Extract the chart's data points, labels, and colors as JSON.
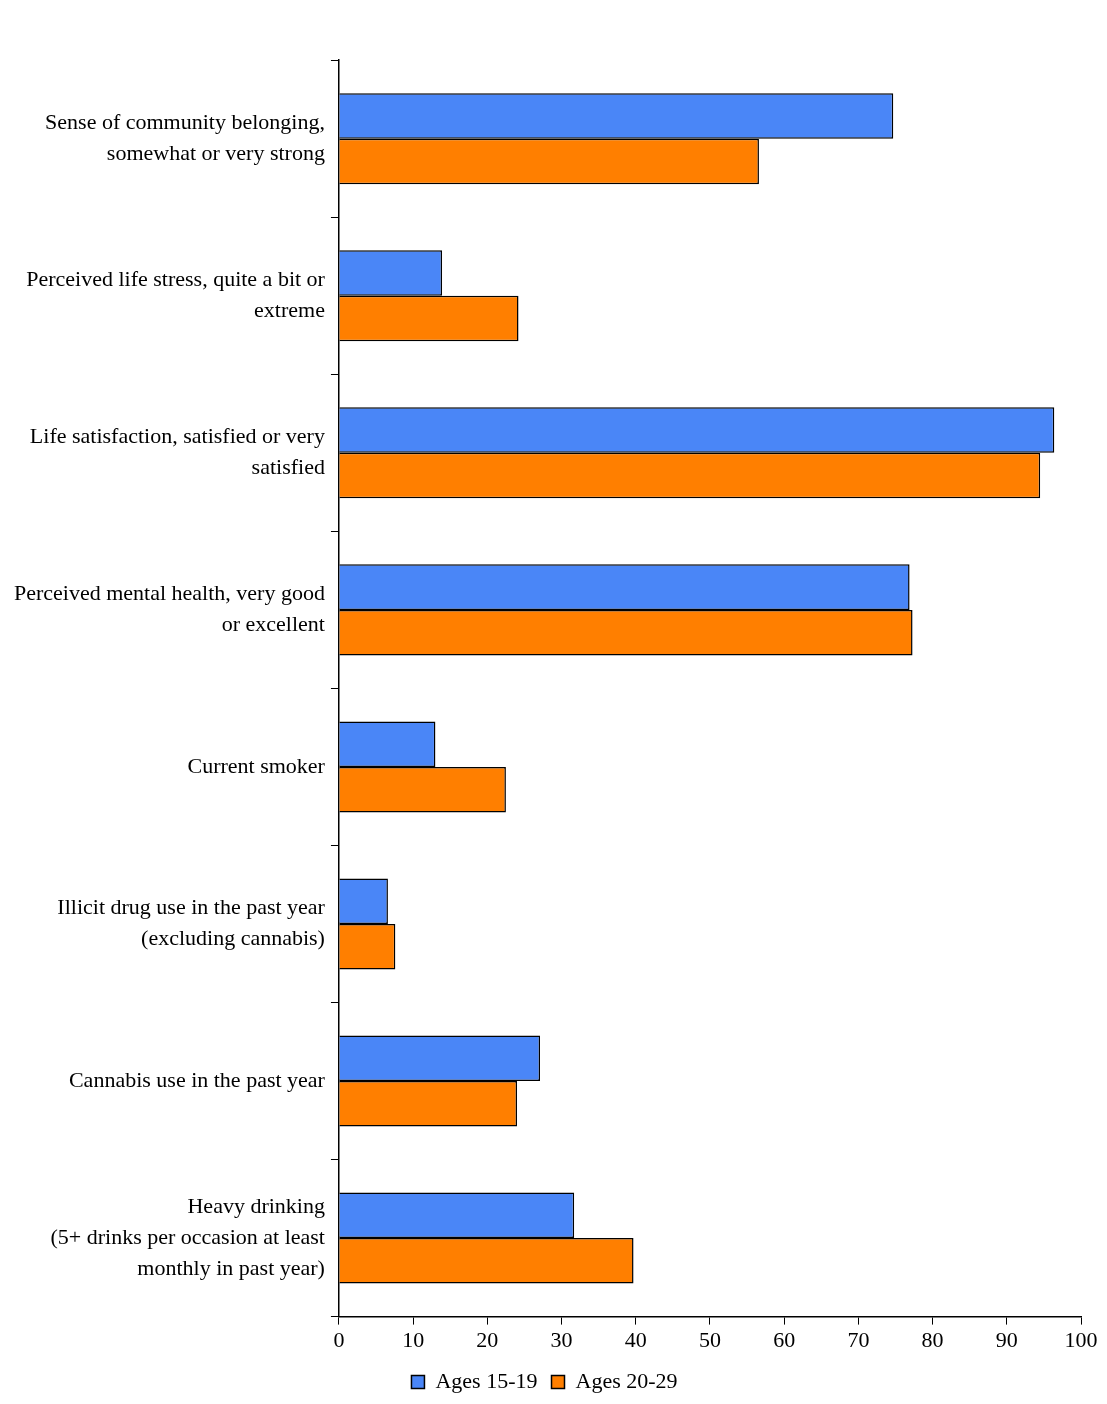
{
  "chart_data": {
    "type": "bar",
    "orientation": "horizontal",
    "categories": [
      "Sense of community belonging, somewhat or very strong",
      "Perceived life stress, quite a bit or extreme",
      "Life satisfaction, satisfied or very satisfied",
      "Perceived mental health, very good or excellent",
      "Current smoker",
      "Illicit drug use in the past year (excluding cannabis)",
      "Cannabis use in the past year",
      "Heavy drinking (5+ drinks per occasion at least monthly in past year)"
    ],
    "series": [
      {
        "name": "Ages 15-19",
        "color": "#4a86f7",
        "values": [
          74.7,
          13.9,
          96.4,
          76.9,
          13.0,
          6.6,
          27.1,
          31.7
        ]
      },
      {
        "name": "Ages 20-29",
        "color": "#ff7f00",
        "values": [
          56.6,
          24.2,
          94.5,
          77.3,
          22.5,
          7.6,
          24.0,
          39.7
        ]
      }
    ],
    "xlim": [
      0,
      100
    ],
    "xticks": [
      0,
      10,
      20,
      30,
      40,
      50,
      60,
      70,
      80,
      90,
      100
    ],
    "grid": false,
    "legend": "bottom"
  }
}
